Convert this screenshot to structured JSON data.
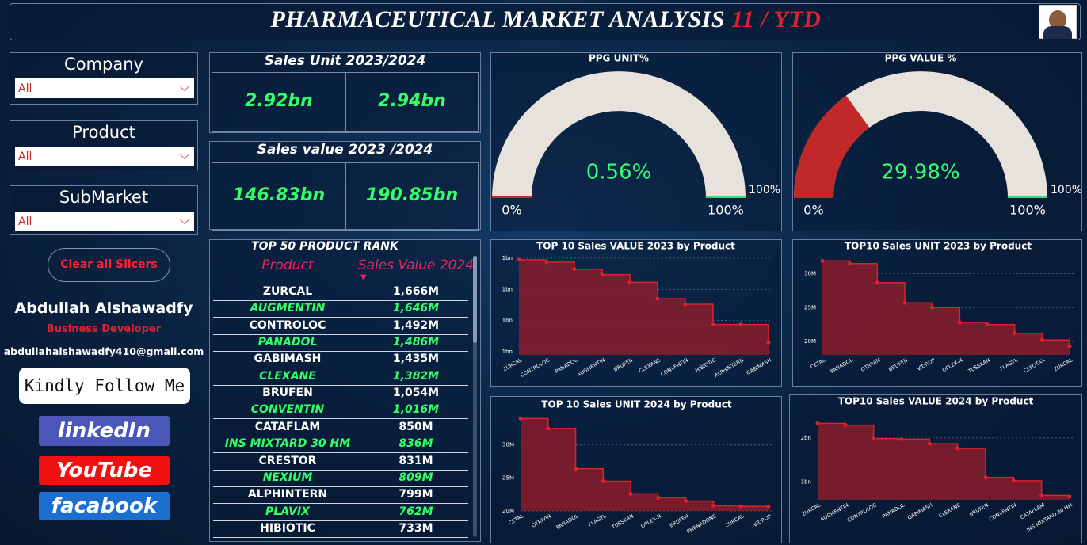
{
  "header": {
    "title": "PHARMACEUTICAL MARKET ANALYSIS",
    "title_accent": "11 / YTD"
  },
  "slicers": [
    {
      "label": "Company",
      "value": "All"
    },
    {
      "label": "Product",
      "value": "All"
    },
    {
      "label": "SubMarket",
      "value": "All"
    }
  ],
  "clear_button": "Clear all Slicers",
  "profile": {
    "name": "Abdullah Alshawadfy",
    "role": "Business Developer",
    "email": "abdullahalshawadfy410@gmail.com",
    "follow": "Kindly Follow Me"
  },
  "links": [
    "linkedIn",
    "YouTube",
    "facabook"
  ],
  "kpis": [
    {
      "title": "Sales Unit 2023/2024",
      "values": [
        "2.92bn",
        "2.94bn"
      ]
    },
    {
      "title": "Sales value 2023 /2024",
      "values": [
        "146.83bn",
        "190.85bn"
      ]
    }
  ],
  "table": {
    "title": "TOP 50 PRODUCT RANK",
    "columns": [
      "Product",
      "Sales Value 2024"
    ],
    "rows": [
      [
        "ZURCAL",
        "1,666M"
      ],
      [
        "AUGMENTIN",
        "1,646M"
      ],
      [
        "CONTROLOC",
        "1,492M"
      ],
      [
        "PANADOL",
        "1,486M"
      ],
      [
        "GABIMASH",
        "1,435M"
      ],
      [
        "CLEXANE",
        "1,382M"
      ],
      [
        "BRUFEN",
        "1,054M"
      ],
      [
        "CONVENTIN",
        "1,016M"
      ],
      [
        "CATAFLAM",
        "850M"
      ],
      [
        "INS MIXTARD 30 HM",
        "836M"
      ],
      [
        "CRESTOR",
        "831M"
      ],
      [
        "NEXIUM",
        "809M"
      ],
      [
        "ALPHINTERN",
        "799M"
      ],
      [
        "PLAVIX",
        "762M"
      ],
      [
        "HIBIOTIC",
        "733M"
      ]
    ]
  },
  "chart_data": [
    {
      "type": "gauge",
      "title": "PPG UNIT%",
      "value": 0.56,
      "value_label": "0.56%",
      "color": "#c0282a",
      "ticks": [
        {
          "value": 0,
          "label": "0%"
        },
        {
          "value": 100,
          "label": "100%"
        }
      ],
      "target": {
        "value": 100,
        "label": "100%"
      }
    },
    {
      "type": "gauge",
      "title": "PPG VALUE %",
      "value": 29.98,
      "value_label": "29.98%",
      "color": "#c0282a",
      "ticks": [
        {
          "value": 0,
          "label": "0%"
        },
        {
          "value": 100,
          "label": "100%"
        }
      ],
      "target": {
        "value": 100,
        "label": "100%"
      }
    },
    {
      "type": "step",
      "title": "TOP 10 Sales VALUE 2023 by Product",
      "color": "#e0202e",
      "categories": [
        "ZURCAL",
        "CONTROLOC",
        "PANADOL",
        "AUGMENTIN",
        "BRUFEN",
        "CLEXANE",
        "CONVENTIN",
        "HIBIOTIC",
        "ALPHINTERN",
        "GABIMASH"
      ],
      "values": [
        1.39,
        1.375,
        1.33,
        1.295,
        1.245,
        1.14,
        1.105,
        0.975,
        0.975,
        0.86
      ],
      "ylim": [
        0.78,
        1.43
      ],
      "yticks": [
        {
          "value": 0.8,
          "label": "1bn"
        },
        {
          "value": 1.0,
          "label": "1bn"
        },
        {
          "value": 1.2,
          "label": "1bn"
        },
        {
          "value": 1.4,
          "label": "1bn"
        }
      ],
      "grid": true
    },
    {
      "type": "step",
      "title": "TOP10 Sales UNIT 2023 by Product",
      "color": "#e0202e",
      "categories": [
        "CETAL",
        "PANADOL",
        "OTRIVIN",
        "BRUFEN",
        "VIDROP",
        "OPLEX-N",
        "TUSSKAN",
        "FLAGYL",
        "CEFOTAX",
        "ZURCAL"
      ],
      "values": [
        31.9,
        31.5,
        28.7,
        25.7,
        25.0,
        22.8,
        22.5,
        21.2,
        20.2,
        19.3
      ],
      "ylim": [
        18,
        33
      ],
      "yticks": [
        {
          "value": 20,
          "label": "20M"
        },
        {
          "value": 25,
          "label": "25M"
        },
        {
          "value": 30,
          "label": "30M"
        }
      ],
      "grid": true
    },
    {
      "type": "step",
      "title": "TOP 10 Sales UNIT 2024 by Product",
      "color": "#e0202e",
      "categories": [
        "CETAL",
        "OTRIVIN",
        "PANADOL",
        "FLAGYL",
        "TUSSKAN",
        "OPLEX-N",
        "BRUFEN",
        "PHENADONE",
        "ZURCAL",
        "VIDROP"
      ],
      "values": [
        34.0,
        32.5,
        26.4,
        24.5,
        22.6,
        22.0,
        21.5,
        20.8,
        20.7,
        20.7
      ],
      "ylim": [
        20,
        35
      ],
      "yticks": [
        {
          "value": 20,
          "label": "20M"
        },
        {
          "value": 25,
          "label": "25M"
        },
        {
          "value": 30,
          "label": "30M"
        }
      ],
      "grid": true
    },
    {
      "type": "step",
      "title": "TOP10 Sales VALUE 2024 by Product",
      "color": "#e0202e",
      "categories": [
        "ZURCAL",
        "AUGMENTIN",
        "CONTROLOC",
        "PANADOL",
        "GABIMASH",
        "CLEXANE",
        "BRUFEN",
        "CONVENTIN",
        "CATAFLAM",
        "INS MIXTARD 30 HM"
      ],
      "values": [
        1.666,
        1.646,
        1.492,
        1.486,
        1.435,
        1.382,
        1.054,
        1.016,
        0.85,
        0.836
      ],
      "ylim": [
        0.8,
        1.75
      ],
      "yticks": [
        {
          "value": 1.0,
          "label": "1bn"
        },
        {
          "value": 1.5,
          "label": "2bn"
        }
      ],
      "grid": true
    }
  ]
}
